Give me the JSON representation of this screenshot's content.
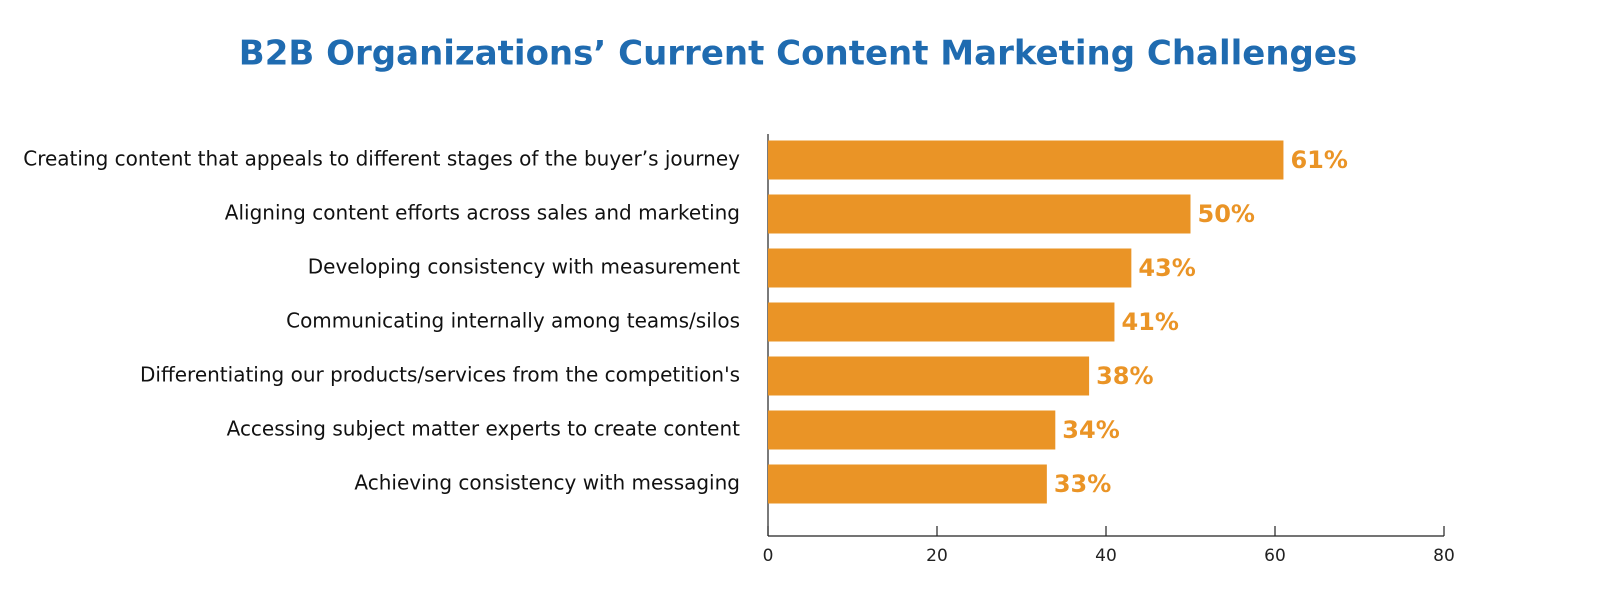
{
  "chart_data": {
    "type": "bar",
    "orientation": "horizontal",
    "title": "B2B Organizations’ Current Content Marketing Challenges",
    "categories": [
      "Creating content that appeals to different stages of the buyer’s journey",
      "Aligning content efforts across sales and marketing",
      "Developing consistency with measurement",
      "Communicating internally among teams/silos",
      "Differentiating our products/services from the competition's",
      "Accessing subject matter experts to create content",
      "Achieving consistency with messaging"
    ],
    "values": [
      61,
      50,
      43,
      41,
      38,
      34,
      33
    ],
    "value_labels": [
      "61%",
      "50%",
      "43%",
      "41%",
      "38%",
      "34%",
      "33%"
    ],
    "color": "#ea9426",
    "xlim": [
      0,
      80
    ],
    "xticks": [
      0,
      20,
      40,
      60,
      80
    ]
  }
}
